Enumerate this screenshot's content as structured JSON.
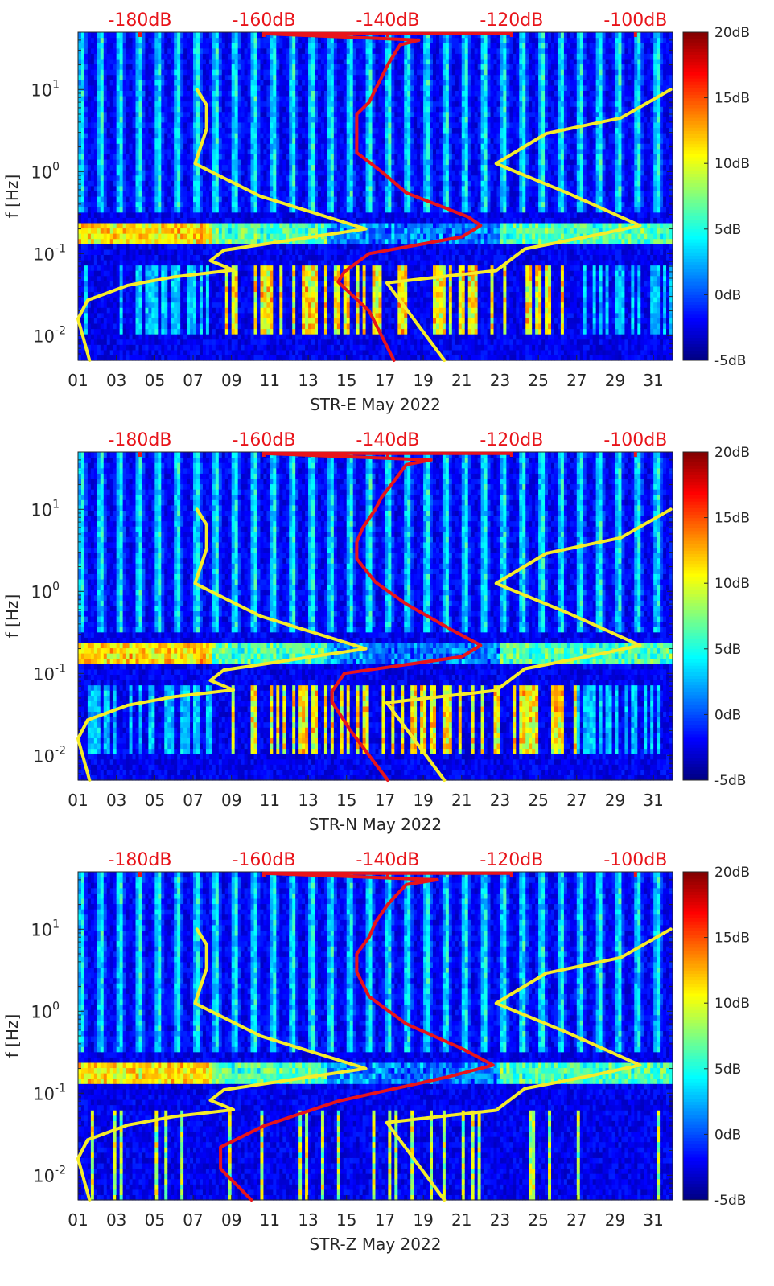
{
  "chart_data": [
    {
      "type": "heatmap",
      "title": "",
      "xlabel": "STR-E May 2022",
      "ylabel": "f [Hz]",
      "x_ticks": [
        "01",
        "03",
        "05",
        "07",
        "09",
        "11",
        "13",
        "15",
        "17",
        "19",
        "21",
        "23",
        "25",
        "27",
        "29",
        "31"
      ],
      "x_tick_values": [
        1,
        3,
        5,
        7,
        9,
        11,
        13,
        15,
        17,
        19,
        21,
        23,
        25,
        27,
        29,
        31
      ],
      "xlim": [
        1,
        32
      ],
      "y_scale": "log",
      "ylim": [
        0.005,
        50
      ],
      "y_ticks": [
        {
          "value": 0.01,
          "base": "10",
          "exp": "-2"
        },
        {
          "value": 0.1,
          "base": "10",
          "exp": "-1"
        },
        {
          "value": 1,
          "base": "10",
          "exp": "0"
        },
        {
          "value": 10,
          "base": "10",
          "exp": "1"
        }
      ],
      "top_axis_color": "#e8141a",
      "top_axis_ticks": [
        "-180dB",
        "-160dB",
        "-140dB",
        "-120dB",
        "-100dB"
      ],
      "top_axis_values": [
        -180,
        -160,
        -140,
        -120,
        -100
      ],
      "top_axis_range": [
        -190,
        -94
      ],
      "colorbar_ticks": [
        "20dB",
        "15dB",
        "10dB",
        "5dB",
        "0dB",
        "-5dB"
      ],
      "colorbar_values": [
        20,
        15,
        10,
        5,
        0,
        -5
      ],
      "colorbar_range": [
        -5,
        20
      ],
      "microseism_band_hz": [
        0.13,
        0.25
      ],
      "series": [
        {
          "color": "#f5ec2a",
          "x_axis": "bottom",
          "points": [
            [
              1.6,
              0.005
            ],
            [
              1.0,
              0.016
            ],
            [
              1.5,
              0.027
            ],
            [
              3.6,
              0.041
            ],
            [
              6,
              0.052
            ],
            [
              9.1,
              0.063
            ],
            [
              7.9,
              0.082
            ],
            [
              8.6,
              0.11
            ],
            [
              16,
              0.2
            ],
            [
              10.5,
              0.5
            ],
            [
              7.1,
              1.25
            ],
            [
              7.7,
              3.3
            ],
            [
              7.7,
              6.5
            ],
            [
              7.2,
              10
            ]
          ]
        },
        {
          "color": "#f5ec2a",
          "x_axis": "bottom",
          "points": [
            [
              20.1,
              0.005
            ],
            [
              17.1,
              0.044
            ],
            [
              22.8,
              0.062
            ],
            [
              24.3,
              0.114
            ],
            [
              28.1,
              0.17
            ],
            [
              30.3,
              0.22
            ],
            [
              26.5,
              0.55
            ],
            [
              22.8,
              1.25
            ],
            [
              25.4,
              2.9
            ],
            [
              29.3,
              4.5
            ],
            [
              31.9,
              10
            ]
          ]
        },
        {
          "color": "#e8141a",
          "x_axis": "top",
          "dB_points": [
            [
              -139,
              0.005
            ],
            [
              -143,
              0.02
            ],
            [
              -148,
              0.045
            ],
            [
              -147,
              0.06
            ],
            [
              -143,
              0.1
            ],
            [
              -128,
              0.16
            ],
            [
              -125,
              0.22
            ],
            [
              -127,
              0.28
            ],
            [
              -137,
              0.55
            ],
            [
              -141,
              1.0
            ],
            [
              -145,
              1.7
            ],
            [
              -145,
              3.0
            ],
            [
              -145,
              5
            ],
            [
              -143,
              7
            ],
            [
              -142,
              10
            ],
            [
              -141,
              14
            ],
            [
              -140,
              20
            ],
            [
              -138,
              35
            ],
            [
              -135,
              40
            ],
            [
              -160,
              48
            ],
            [
              -120,
              48
            ]
          ]
        }
      ]
    },
    {
      "type": "heatmap",
      "title": "",
      "xlabel": "STR-N May 2022",
      "ylabel": "f [Hz]",
      "x_ticks": [
        "01",
        "03",
        "05",
        "07",
        "09",
        "11",
        "13",
        "15",
        "17",
        "19",
        "21",
        "23",
        "25",
        "27",
        "29",
        "31"
      ],
      "x_tick_values": [
        1,
        3,
        5,
        7,
        9,
        11,
        13,
        15,
        17,
        19,
        21,
        23,
        25,
        27,
        29,
        31
      ],
      "xlim": [
        1,
        32
      ],
      "y_scale": "log",
      "ylim": [
        0.005,
        50
      ],
      "y_ticks": [
        {
          "value": 0.01,
          "base": "10",
          "exp": "-2"
        },
        {
          "value": 0.1,
          "base": "10",
          "exp": "-1"
        },
        {
          "value": 1,
          "base": "10",
          "exp": "0"
        },
        {
          "value": 10,
          "base": "10",
          "exp": "1"
        }
      ],
      "top_axis_color": "#e8141a",
      "top_axis_ticks": [
        "-180dB",
        "-160dB",
        "-140dB",
        "-120dB",
        "-100dB"
      ],
      "top_axis_values": [
        -180,
        -160,
        -140,
        -120,
        -100
      ],
      "top_axis_range": [
        -190,
        -94
      ],
      "colorbar_ticks": [
        "20dB",
        "15dB",
        "10dB",
        "5dB",
        "0dB",
        "-5dB"
      ],
      "colorbar_values": [
        20,
        15,
        10,
        5,
        0,
        -5
      ],
      "colorbar_range": [
        -5,
        20
      ],
      "microseism_band_hz": [
        0.13,
        0.25
      ],
      "series": [
        {
          "color": "#f5ec2a",
          "x_axis": "bottom",
          "points": [
            [
              1.6,
              0.005
            ],
            [
              1.0,
              0.016
            ],
            [
              1.5,
              0.027
            ],
            [
              3.6,
              0.041
            ],
            [
              6,
              0.052
            ],
            [
              9.1,
              0.063
            ],
            [
              7.9,
              0.082
            ],
            [
              8.6,
              0.11
            ],
            [
              16,
              0.2
            ],
            [
              10.5,
              0.5
            ],
            [
              7.1,
              1.25
            ],
            [
              7.7,
              3.3
            ],
            [
              7.7,
              6.5
            ],
            [
              7.2,
              10
            ]
          ]
        },
        {
          "color": "#f5ec2a",
          "x_axis": "bottom",
          "points": [
            [
              20.1,
              0.005
            ],
            [
              17.1,
              0.044
            ],
            [
              22.8,
              0.062
            ],
            [
              24.3,
              0.114
            ],
            [
              28.1,
              0.17
            ],
            [
              30.3,
              0.22
            ],
            [
              26.5,
              0.55
            ],
            [
              22.8,
              1.25
            ],
            [
              25.4,
              2.9
            ],
            [
              29.3,
              4.5
            ],
            [
              31.9,
              10
            ]
          ]
        },
        {
          "color": "#e8141a",
          "x_axis": "top",
          "dB_points": [
            [
              -140,
              0.005
            ],
            [
              -146,
              0.02
            ],
            [
              -149,
              0.045
            ],
            [
              -149,
              0.06
            ],
            [
              -147,
              0.1
            ],
            [
              -128,
              0.16
            ],
            [
              -125,
              0.22
            ],
            [
              -130,
              0.35
            ],
            [
              -137,
              0.7
            ],
            [
              -142,
              1.3
            ],
            [
              -145,
              2.5
            ],
            [
              -145,
              4
            ],
            [
              -144,
              6
            ],
            [
              -142,
              10
            ],
            [
              -141,
              14
            ],
            [
              -139,
              22
            ],
            [
              -137,
              35
            ],
            [
              -133,
              40
            ],
            [
              -160,
              48
            ],
            [
              -120,
              48
            ]
          ]
        }
      ]
    },
    {
      "type": "heatmap",
      "title": "",
      "xlabel": "STR-Z May 2022",
      "ylabel": "f [Hz]",
      "x_ticks": [
        "01",
        "03",
        "05",
        "07",
        "09",
        "11",
        "13",
        "15",
        "17",
        "19",
        "21",
        "23",
        "25",
        "27",
        "29",
        "31"
      ],
      "x_tick_values": [
        1,
        3,
        5,
        7,
        9,
        11,
        13,
        15,
        17,
        19,
        21,
        23,
        25,
        27,
        29,
        31
      ],
      "xlim": [
        1,
        32
      ],
      "y_scale": "log",
      "ylim": [
        0.005,
        50
      ],
      "y_ticks": [
        {
          "value": 0.01,
          "base": "10",
          "exp": "-2"
        },
        {
          "value": 0.1,
          "base": "10",
          "exp": "-1"
        },
        {
          "value": 1,
          "base": "10",
          "exp": "0"
        },
        {
          "value": 10,
          "base": "10",
          "exp": "1"
        }
      ],
      "top_axis_color": "#e8141a",
      "top_axis_ticks": [
        "-180dB",
        "-160dB",
        "-140dB",
        "-120dB",
        "-100dB"
      ],
      "top_axis_values": [
        -180,
        -160,
        -140,
        -120,
        -100
      ],
      "top_axis_range": [
        -190,
        -94
      ],
      "colorbar_ticks": [
        "20dB",
        "15dB",
        "10dB",
        "5dB",
        "0dB",
        "-5dB"
      ],
      "colorbar_values": [
        20,
        15,
        10,
        5,
        0,
        -5
      ],
      "colorbar_range": [
        -5,
        20
      ],
      "microseism_band_hz": [
        0.13,
        0.25
      ],
      "series": [
        {
          "color": "#f5ec2a",
          "x_axis": "bottom",
          "points": [
            [
              1.6,
              0.005
            ],
            [
              1.0,
              0.016
            ],
            [
              1.5,
              0.027
            ],
            [
              3.6,
              0.041
            ],
            [
              6,
              0.052
            ],
            [
              9.1,
              0.063
            ],
            [
              7.9,
              0.082
            ],
            [
              8.6,
              0.11
            ],
            [
              16,
              0.2
            ],
            [
              10.5,
              0.5
            ],
            [
              7.1,
              1.25
            ],
            [
              7.7,
              3.3
            ],
            [
              7.7,
              6.5
            ],
            [
              7.2,
              10
            ]
          ]
        },
        {
          "color": "#f5ec2a",
          "x_axis": "bottom",
          "points": [
            [
              20.1,
              0.005
            ],
            [
              17.1,
              0.044
            ],
            [
              22.8,
              0.062
            ],
            [
              24.3,
              0.114
            ],
            [
              28.1,
              0.17
            ],
            [
              30.3,
              0.22
            ],
            [
              26.5,
              0.55
            ],
            [
              22.8,
              1.25
            ],
            [
              25.4,
              2.9
            ],
            [
              29.3,
              4.5
            ],
            [
              31.9,
              10
            ]
          ]
        },
        {
          "color": "#e8141a",
          "x_axis": "top",
          "dB_points": [
            [
              -162,
              0.005
            ],
            [
              -167,
              0.012
            ],
            [
              -167,
              0.022
            ],
            [
              -160,
              0.04
            ],
            [
              -148,
              0.08
            ],
            [
              -130,
              0.16
            ],
            [
              -123,
              0.22
            ],
            [
              -128,
              0.35
            ],
            [
              -137,
              0.7
            ],
            [
              -143,
              1.5
            ],
            [
              -145,
              3
            ],
            [
              -145,
              5
            ],
            [
              -143,
              8
            ],
            [
              -142,
              12
            ],
            [
              -140,
              20
            ],
            [
              -137,
              35
            ],
            [
              -132,
              40
            ],
            [
              -160,
              48
            ],
            [
              -120,
              48
            ]
          ]
        }
      ]
    }
  ]
}
